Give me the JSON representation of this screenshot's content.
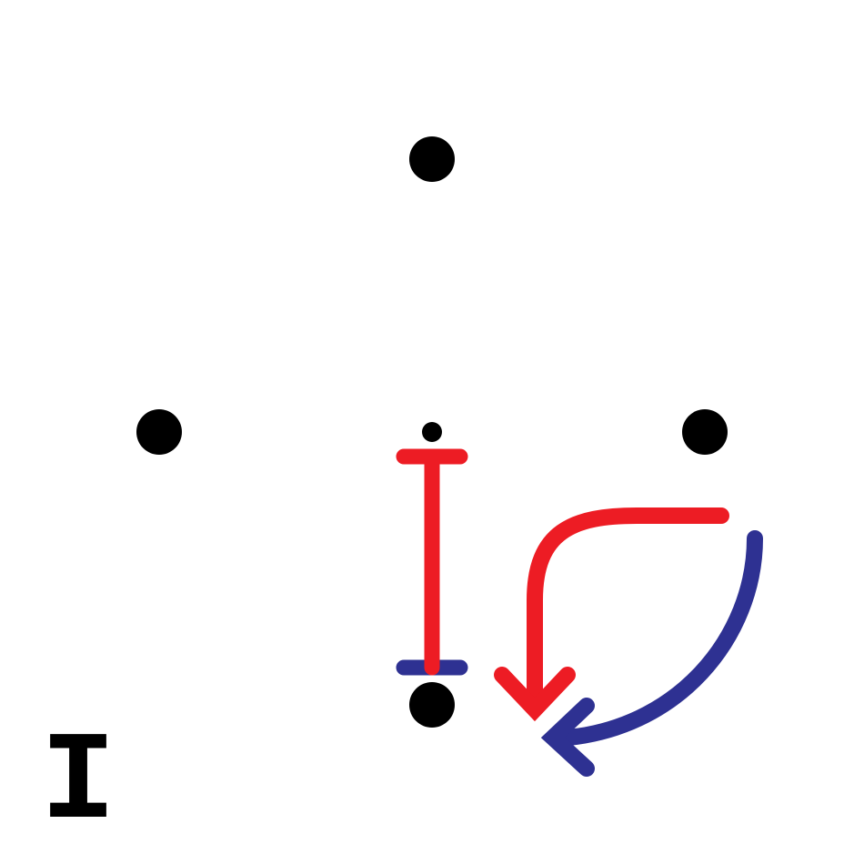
{
  "label": "I",
  "colors": {
    "background": "#ffffff",
    "dots": "#000000",
    "red": "#ed1c24",
    "blue": "#2e3192"
  },
  "elements": {
    "dots": [
      "top-dot",
      "left-dot",
      "center-dot",
      "right-dot",
      "bottom-dot"
    ],
    "red_marker": "i-beam",
    "blue_marker": "bar",
    "red_arrow": "curved-arrow",
    "blue_arrow": "curved-arrow"
  }
}
